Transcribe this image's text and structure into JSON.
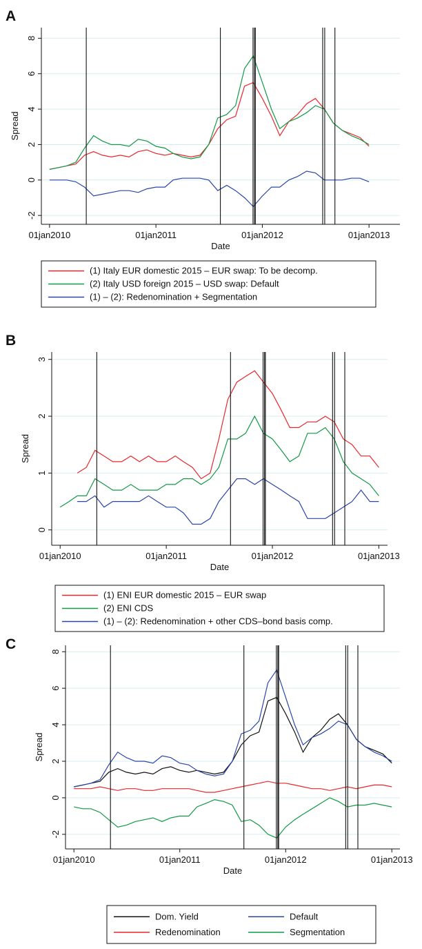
{
  "chart_data": [
    {
      "type": "line",
      "panel_label": "A",
      "x_label": "Date",
      "y_label": "Spread",
      "xlim": [
        "2009-12-04",
        "2013-04-17"
      ],
      "xticks": [
        {
          "value": "2010-01-01",
          "label": "01jan2010"
        },
        {
          "value": "2011-01-01",
          "label": "01jan2011"
        },
        {
          "value": "2012-01-01",
          "label": "01jan2012"
        },
        {
          "value": "2013-01-01",
          "label": "01jan2013"
        }
      ],
      "ylim": [
        -2.5,
        8.6
      ],
      "yticks": [
        -2,
        0,
        2,
        4,
        6,
        8
      ],
      "grid": true,
      "vlines": [
        "2010-05-07",
        "2011-08-10",
        "2011-11-30",
        "2011-12-05",
        "2011-12-08",
        "2012-07-26",
        "2012-08-02",
        "2012-09-06"
      ],
      "x": [
        "2010-01-01",
        "2010-02-01",
        "2010-03-01",
        "2010-04-01",
        "2010-05-01",
        "2010-06-01",
        "2010-07-01",
        "2010-08-01",
        "2010-09-01",
        "2010-10-01",
        "2010-11-01",
        "2010-12-01",
        "2011-01-01",
        "2011-02-01",
        "2011-03-01",
        "2011-04-01",
        "2011-05-01",
        "2011-06-01",
        "2011-07-01",
        "2011-08-01",
        "2011-09-01",
        "2011-10-01",
        "2011-11-01",
        "2011-12-01",
        "2012-01-01",
        "2012-02-01",
        "2012-03-01",
        "2012-04-01",
        "2012-05-01",
        "2012-06-01",
        "2012-07-01",
        "2012-08-01",
        "2012-09-01",
        "2012-10-01",
        "2012-11-01",
        "2012-12-01",
        "2013-01-01"
      ],
      "series": [
        {
          "name": "(1) Italy EUR domestic 2015 – EUR swap: To be decomp.",
          "color": "#e8262a",
          "values": [
            0.6,
            0.7,
            0.8,
            0.9,
            1.4,
            1.6,
            1.4,
            1.3,
            1.4,
            1.3,
            1.6,
            1.7,
            1.5,
            1.4,
            1.5,
            1.4,
            1.3,
            1.4,
            2.0,
            2.9,
            3.4,
            3.6,
            5.3,
            5.5,
            4.6,
            3.6,
            2.5,
            3.3,
            3.7,
            4.3,
            4.6,
            4.0,
            3.2,
            2.8,
            2.6,
            2.4,
            1.9
          ]
        },
        {
          "name": "(2) Italy USD foreign 2015 – USD swap: Default",
          "color": "#119944",
          "values": [
            0.6,
            0.7,
            0.8,
            1.0,
            1.8,
            2.5,
            2.2,
            2.0,
            2.0,
            1.9,
            2.3,
            2.2,
            1.9,
            1.8,
            1.5,
            1.3,
            1.2,
            1.3,
            2.0,
            3.5,
            3.7,
            4.2,
            6.3,
            7.0,
            5.5,
            4.0,
            2.9,
            3.3,
            3.5,
            3.8,
            4.2,
            4.0,
            3.2,
            2.8,
            2.5,
            2.3,
            2.0
          ]
        },
        {
          "name": "(1) – (2): Redenomination + Segmentation",
          "color": "#2a45a8",
          "values": [
            0,
            0,
            0,
            -0.1,
            -0.4,
            -0.9,
            -0.8,
            -0.7,
            -0.6,
            -0.6,
            -0.7,
            -0.5,
            -0.4,
            -0.4,
            0,
            0.1,
            0.1,
            0.1,
            0,
            -0.6,
            -0.3,
            -0.6,
            -1.0,
            -1.5,
            -0.9,
            -0.4,
            -0.4,
            0,
            0.2,
            0.5,
            0.4,
            0,
            0,
            0,
            0.1,
            0.1,
            -0.1
          ]
        }
      ]
    },
    {
      "type": "line",
      "panel_label": "B",
      "x_label": "Date",
      "y_label": "Spread",
      "xlim": [
        "2009-12-03",
        "2013-01-31"
      ],
      "xticks": [
        {
          "value": "2010-01-01",
          "label": "01jan2010"
        },
        {
          "value": "2011-01-01",
          "label": "01jan2011"
        },
        {
          "value": "2012-01-01",
          "label": "01jan2012"
        },
        {
          "value": "2013-01-01",
          "label": "01jan2013"
        }
      ],
      "ylim": [
        -0.27,
        3.13
      ],
      "yticks": [
        0,
        1,
        2,
        3
      ],
      "grid": true,
      "vlines": [
        "2010-05-07",
        "2011-08-10",
        "2011-11-30",
        "2011-12-05",
        "2011-12-08",
        "2012-07-26",
        "2012-08-02",
        "2012-09-06"
      ],
      "x": [
        "2010-01-01",
        "2010-02-01",
        "2010-03-01",
        "2010-04-01",
        "2010-05-01",
        "2010-06-01",
        "2010-07-01",
        "2010-08-01",
        "2010-09-01",
        "2010-10-01",
        "2010-11-01",
        "2010-12-01",
        "2011-01-01",
        "2011-02-01",
        "2011-03-01",
        "2011-04-01",
        "2011-05-01",
        "2011-06-01",
        "2011-07-01",
        "2011-08-01",
        "2011-09-01",
        "2011-10-01",
        "2011-11-01",
        "2011-12-01",
        "2012-01-01",
        "2012-02-01",
        "2012-03-01",
        "2012-04-01",
        "2012-05-01",
        "2012-06-01",
        "2012-07-01",
        "2012-08-01",
        "2012-09-01",
        "2012-10-01",
        "2012-11-01",
        "2012-12-01",
        "2013-01-01"
      ],
      "series": [
        {
          "name": "(1) ENI EUR domestic 2015 – EUR swap",
          "color": "#e8262a",
          "values": [
            null,
            null,
            1.0,
            1.1,
            1.4,
            1.3,
            1.2,
            1.2,
            1.3,
            1.2,
            1.3,
            1.2,
            1.2,
            1.3,
            1.2,
            1.1,
            0.9,
            1.0,
            1.6,
            2.3,
            2.6,
            2.7,
            2.8,
            2.6,
            2.4,
            2.1,
            1.8,
            1.8,
            1.9,
            1.9,
            2.0,
            1.9,
            1.6,
            1.5,
            1.3,
            1.3,
            1.1
          ]
        },
        {
          "name": "(2) ENI CDS",
          "color": "#119944",
          "values": [
            0.4,
            0.5,
            0.6,
            0.6,
            0.9,
            0.8,
            0.7,
            0.7,
            0.8,
            0.7,
            0.7,
            0.7,
            0.8,
            0.8,
            0.9,
            0.9,
            0.8,
            0.9,
            1.1,
            1.6,
            1.6,
            1.7,
            2.0,
            1.7,
            1.6,
            1.4,
            1.2,
            1.3,
            1.7,
            1.7,
            1.8,
            1.6,
            1.2,
            1.0,
            0.9,
            0.8,
            0.6
          ]
        },
        {
          "name": "(1) – (2): Redenomination + other CDS–bond basis comp.",
          "color": "#2a45a8",
          "values": [
            null,
            null,
            0.5,
            0.5,
            0.6,
            0.4,
            0.5,
            0.5,
            0.5,
            0.5,
            0.6,
            0.5,
            0.4,
            0.4,
            0.3,
            0.1,
            0.1,
            0.2,
            0.5,
            0.7,
            0.9,
            0.9,
            0.8,
            0.9,
            0.8,
            0.7,
            0.6,
            0.5,
            0.2,
            0.2,
            0.2,
            0.3,
            0.4,
            0.5,
            0.7,
            0.5,
            0.5
          ]
        }
      ]
    },
    {
      "type": "line",
      "panel_label": "C",
      "x_label": "Date",
      "y_label": "Spread",
      "xlim": [
        "2009-12-03",
        "2013-01-29"
      ],
      "xticks": [
        {
          "value": "2010-01-01",
          "label": "01jan2010"
        },
        {
          "value": "2011-01-01",
          "label": "01jan2011"
        },
        {
          "value": "2012-01-01",
          "label": "01jan2012"
        },
        {
          "value": "2013-01-01",
          "label": "01jan2013"
        }
      ],
      "ylim": [
        -2.8,
        8.35
      ],
      "yticks": [
        -2,
        0,
        2,
        4,
        6,
        8
      ],
      "grid": true,
      "vlines": [
        "2010-05-07",
        "2011-08-10",
        "2011-11-30",
        "2011-12-05",
        "2011-12-08",
        "2012-07-26",
        "2012-08-02",
        "2012-09-06"
      ],
      "x": [
        "2010-01-01",
        "2010-02-01",
        "2010-03-01",
        "2010-04-01",
        "2010-05-01",
        "2010-06-01",
        "2010-07-01",
        "2010-08-01",
        "2010-09-01",
        "2010-10-01",
        "2010-11-01",
        "2010-12-01",
        "2011-01-01",
        "2011-02-01",
        "2011-03-01",
        "2011-04-01",
        "2011-05-01",
        "2011-06-01",
        "2011-07-01",
        "2011-08-01",
        "2011-09-01",
        "2011-10-01",
        "2011-11-01",
        "2011-12-01",
        "2012-01-01",
        "2012-02-01",
        "2012-03-01",
        "2012-04-01",
        "2012-05-01",
        "2012-06-01",
        "2012-07-01",
        "2012-08-01",
        "2012-09-01",
        "2012-10-01",
        "2012-11-01",
        "2012-12-01",
        "2013-01-01"
      ],
      "series": [
        {
          "name": "Dom. Yield",
          "color": "#111111",
          "values": [
            0.6,
            0.7,
            0.8,
            0.9,
            1.4,
            1.6,
            1.4,
            1.3,
            1.4,
            1.3,
            1.6,
            1.7,
            1.5,
            1.4,
            1.5,
            1.4,
            1.3,
            1.4,
            2.0,
            2.9,
            3.4,
            3.6,
            5.3,
            5.5,
            4.6,
            3.6,
            2.5,
            3.3,
            3.7,
            4.3,
            4.6,
            4.0,
            3.2,
            2.8,
            2.6,
            2.4,
            1.9
          ]
        },
        {
          "name": "Default",
          "color": "#2a45a8",
          "values": [
            0.6,
            0.7,
            0.8,
            1.0,
            1.8,
            2.5,
            2.2,
            2.0,
            2.0,
            1.9,
            2.3,
            2.2,
            1.9,
            1.8,
            1.5,
            1.3,
            1.2,
            1.3,
            2.0,
            3.5,
            3.7,
            4.2,
            6.3,
            7.0,
            5.5,
            4.0,
            2.9,
            3.3,
            3.5,
            3.8,
            4.2,
            4.0,
            3.2,
            2.8,
            2.5,
            2.3,
            2.0
          ]
        },
        {
          "name": "Redenomination",
          "color": "#e8262a",
          "values": [
            0.5,
            0.5,
            0.5,
            0.6,
            0.5,
            0.4,
            0.5,
            0.5,
            0.4,
            0.4,
            0.5,
            0.5,
            0.5,
            0.5,
            0.4,
            0.3,
            0.3,
            0.4,
            0.5,
            0.6,
            0.7,
            0.8,
            0.9,
            0.8,
            0.8,
            0.7,
            0.6,
            0.5,
            0.5,
            0.4,
            0.5,
            0.6,
            0.5,
            0.6,
            0.7,
            0.7,
            0.6
          ]
        },
        {
          "name": "Segmentation",
          "color": "#119944",
          "values": [
            -0.5,
            -0.6,
            -0.6,
            -0.8,
            -1.2,
            -1.6,
            -1.5,
            -1.3,
            -1.2,
            -1.1,
            -1.3,
            -1.1,
            -1.0,
            -1.0,
            -0.5,
            -0.3,
            -0.1,
            -0.2,
            -0.4,
            -1.3,
            -1.2,
            -1.5,
            -2.0,
            -2.2,
            -1.6,
            -1.2,
            -0.9,
            -0.6,
            -0.3,
            0,
            -0.2,
            -0.5,
            -0.4,
            -0.4,
            -0.3,
            -0.4,
            -0.5
          ]
        }
      ]
    }
  ]
}
